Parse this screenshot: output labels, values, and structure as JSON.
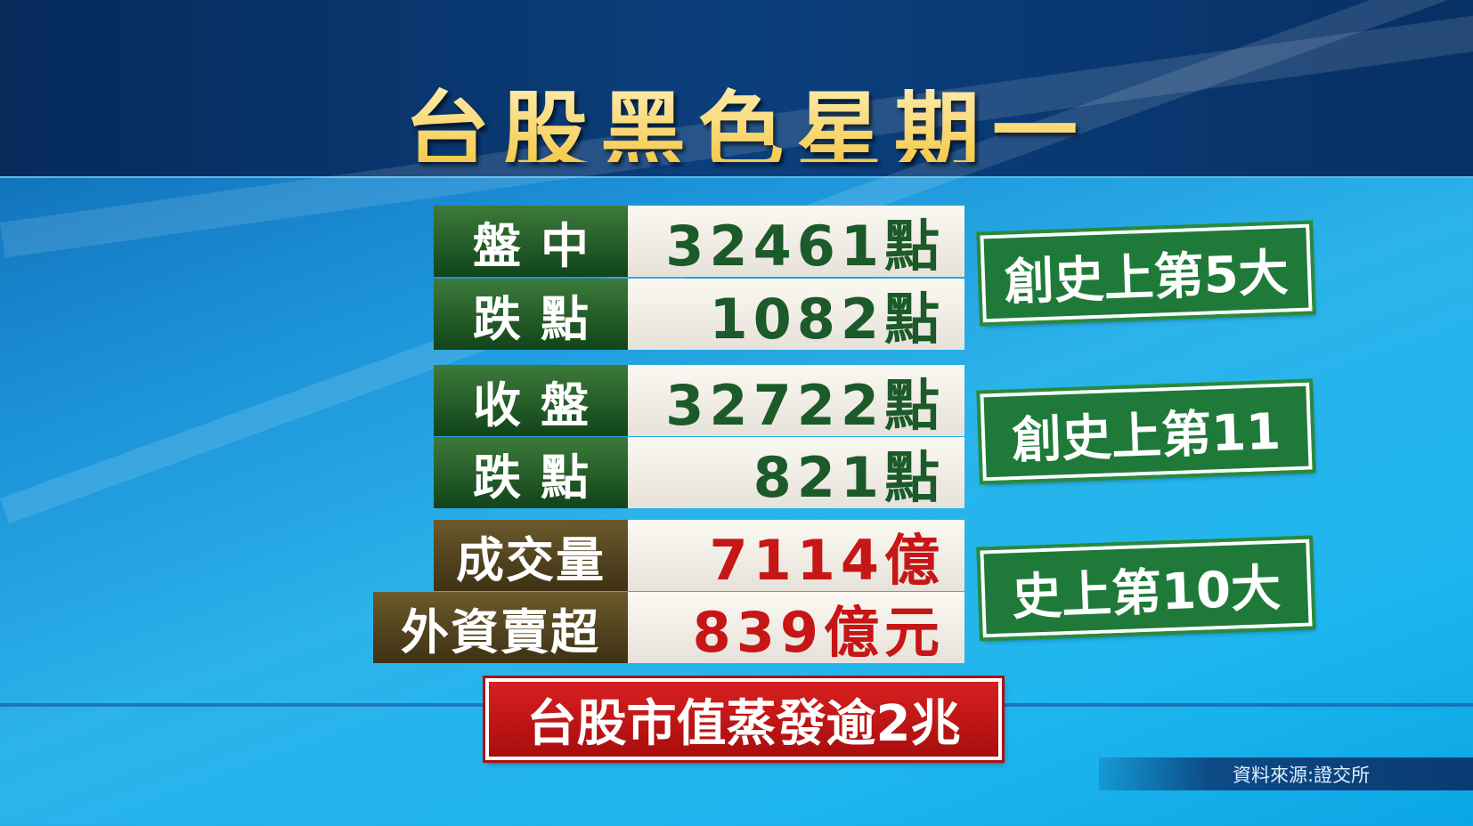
{
  "title": "台股黑色星期一",
  "table": [
    {
      "label": "盤中",
      "value": "32461點",
      "color": "green"
    },
    {
      "label": "跌點",
      "value": "1082點",
      "color": "green"
    },
    {
      "label": "收盤",
      "value": "32722點",
      "color": "green"
    },
    {
      "label": "跌點",
      "value": "821點",
      "color": "green"
    },
    {
      "label": "成交量",
      "value": "7114億",
      "color": "red"
    },
    {
      "label": "外資賣超",
      "value": "839億元",
      "color": "red"
    }
  ],
  "badges": [
    "創史上第5大",
    "創史上第11",
    "史上第10大"
  ],
  "banner": "台股市值蒸發逾2兆",
  "source": "資料來源:證交所",
  "colors": {
    "green_label": "#1f5a2a",
    "brown_label": "#564520",
    "value_green": "#1c5a2a",
    "value_red": "#c71616",
    "badge_green": "#1f7a3a",
    "banner_red": "#c41818",
    "title_gold": "#f6c94c"
  }
}
